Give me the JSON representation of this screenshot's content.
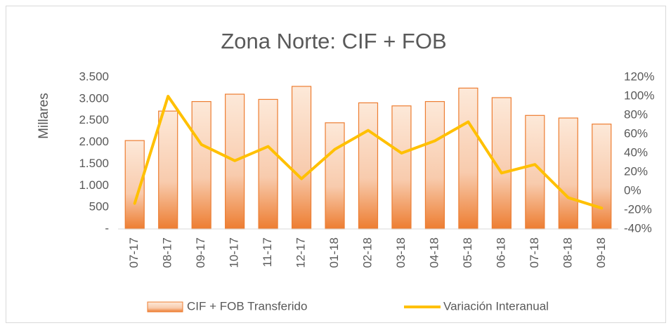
{
  "chart_data": {
    "type": "bar_line",
    "title": "Zona Norte: CIF + FOB",
    "y_label": "Millares",
    "categories": [
      "07-17",
      "08-17",
      "09-17",
      "10-17",
      "11-17",
      "12-17",
      "01-18",
      "02-18",
      "03-18",
      "04-18",
      "05-18",
      "06-18",
      "07-18",
      "08-18",
      "09-18"
    ],
    "series": [
      {
        "name": "CIF + FOB Transferido",
        "type": "bar",
        "color": "#ed7d31",
        "values": [
          2040,
          2720,
          2940,
          3110,
          2990,
          3290,
          2450,
          2910,
          2840,
          2940,
          3250,
          3030,
          2620,
          2560,
          2420
        ]
      },
      {
        "name": "Variación Interanual",
        "type": "line",
        "axis": "y2",
        "color": "#ffc000",
        "values": [
          -13,
          100,
          49,
          32,
          47,
          13,
          44,
          64,
          40,
          53,
          73,
          19,
          28,
          -7,
          -18
        ]
      }
    ],
    "ylim": [
      0,
      3500
    ],
    "yticks": [
      {
        "value": 0,
        "label": "-"
      },
      500,
      {
        "value": 1000,
        "label": "1.000"
      },
      {
        "value": 1500,
        "label": "1.500"
      },
      {
        "value": 2000,
        "label": "2.000"
      },
      {
        "value": 2500,
        "label": "2.500"
      },
      {
        "value": 3000,
        "label": "3.000"
      },
      {
        "value": 3500,
        "label": "3.500"
      }
    ],
    "y2lim": [
      -40,
      120
    ],
    "y2ticks": [
      {
        "value": -40,
        "label": "-40%"
      },
      {
        "value": -20,
        "label": "-20%"
      },
      {
        "value": 0,
        "label": "0%"
      },
      {
        "value": 20,
        "label": "20%"
      },
      {
        "value": 40,
        "label": "40%"
      },
      {
        "value": 60,
        "label": "60%"
      },
      {
        "value": 80,
        "label": "80%"
      },
      {
        "value": 100,
        "label": "100%"
      },
      {
        "value": 120,
        "label": "120%"
      }
    ],
    "grid": false,
    "legend": "bottom"
  }
}
